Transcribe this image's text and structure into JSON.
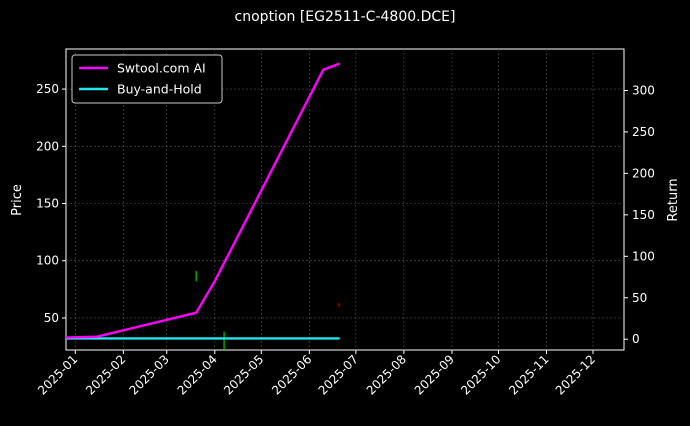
{
  "chart_data": {
    "type": "line",
    "title": "cnoption [EG2511-C-4800.DCE]",
    "xlabel": "",
    "ylabel_left": "Price",
    "ylabel_right": "Return",
    "x_ticks": [
      "2025-01",
      "2025-02",
      "2025-03",
      "2025-04",
      "2025-05",
      "2025-06",
      "2025-07",
      "2025-08",
      "2025-09",
      "2025-10",
      "2025-11",
      "2025-12"
    ],
    "y_left_ticks": [
      50,
      100,
      150,
      200,
      250
    ],
    "y_left_range": [
      22,
      285
    ],
    "y_right_ticks": [
      0,
      50,
      100,
      150,
      200,
      250,
      300
    ],
    "y_right_range": [
      -13,
      350
    ],
    "x_range": [
      "2024-12-26",
      "2025-12-21"
    ],
    "grid": true,
    "legend_position": "top-left",
    "series": [
      {
        "name": "Swtool.com AI",
        "axis": "right",
        "color": "#ff00ff",
        "points": [
          [
            "2024-12-26",
            2
          ],
          [
            "2025-01-15",
            3
          ],
          [
            "2025-03-20",
            32
          ],
          [
            "2025-04-01",
            70
          ],
          [
            "2025-06-10",
            325
          ],
          [
            "2025-06-20",
            332
          ]
        ]
      },
      {
        "name": "Buy-and-Hold",
        "axis": "right",
        "color": "#22e5ee",
        "points": [
          [
            "2024-12-26",
            1
          ],
          [
            "2025-06-20",
            1
          ]
        ]
      }
    ],
    "markers": [
      {
        "date": "2025-03-20",
        "low": 82,
        "high": 91,
        "color": "#00cc00"
      },
      {
        "date": "2025-04-07",
        "low": 22,
        "high": 38,
        "color": "#00cc00"
      },
      {
        "date": "2025-06-20",
        "low": 60,
        "high": 63,
        "color": "#cc0000"
      }
    ]
  }
}
